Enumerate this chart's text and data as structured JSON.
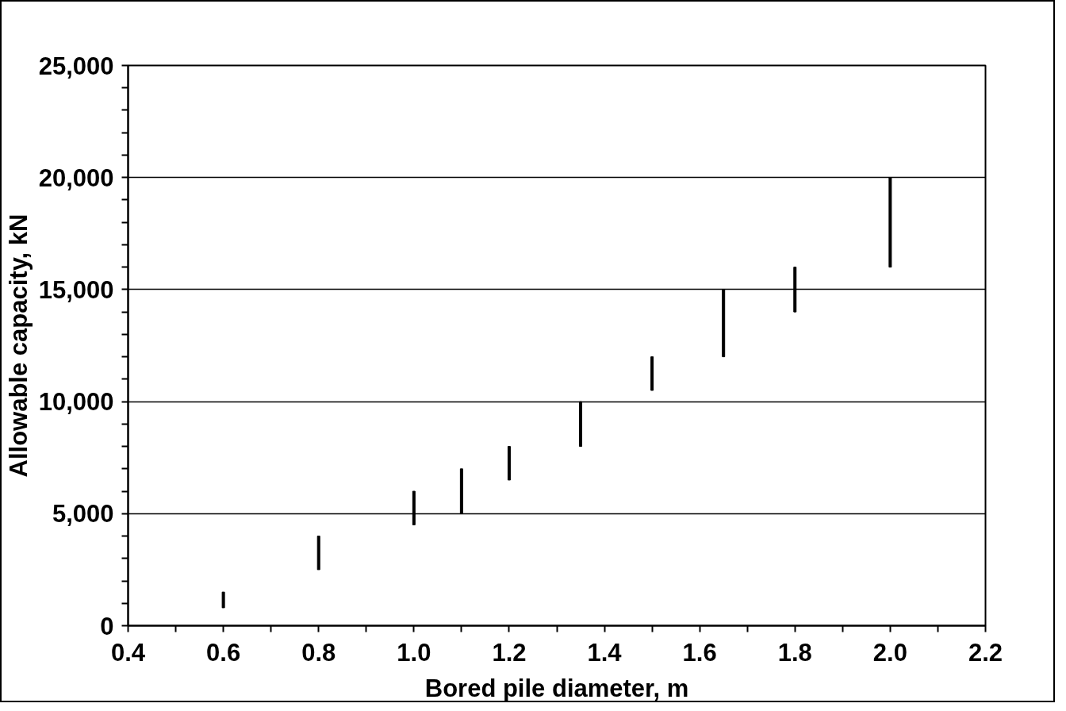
{
  "chart_data": {
    "type": "bar",
    "xlabel": "Bored pile diameter, m",
    "ylabel": "Allowable capacity, kN",
    "x": [
      0.6,
      0.8,
      1.0,
      1.1,
      1.2,
      1.35,
      1.5,
      1.65,
      1.8,
      2.0
    ],
    "series": [
      {
        "color": "#000000",
        "base": [
          800,
          2500,
          4500,
          5000,
          6500,
          8000,
          10500,
          12000,
          14000,
          16000
        ],
        "values": [
          700,
          1500,
          1500,
          2000,
          1500,
          2000,
          1500,
          3000,
          2000,
          4000
        ]
      }
    ],
    "grid": "y",
    "xlim": [
      0.4,
      2.2
    ],
    "xticks": [
      {
        "value": 0.4,
        "label": "0.4"
      },
      {
        "value": 0.6,
        "label": "0.6"
      },
      {
        "value": 0.8,
        "label": "0.8"
      },
      {
        "value": 1.0,
        "label": "1.0"
      },
      {
        "value": 1.2,
        "label": "1.2"
      },
      {
        "value": 1.4,
        "label": "1.4"
      },
      {
        "value": 1.6,
        "label": "1.6"
      },
      {
        "value": 1.8,
        "label": "1.8"
      },
      {
        "value": 2.0,
        "label": "2.0"
      },
      {
        "value": 2.2,
        "label": "2.2"
      }
    ],
    "ylim": [
      0,
      25000
    ],
    "yticks": [
      0,
      {
        "value": 5000,
        "label": "5,000"
      },
      {
        "value": 10000,
        "label": "10,000"
      },
      {
        "value": 15000,
        "label": "15,000"
      },
      {
        "value": 20000,
        "label": "20,000"
      },
      {
        "value": 25000,
        "label": "25,000"
      }
    ]
  }
}
